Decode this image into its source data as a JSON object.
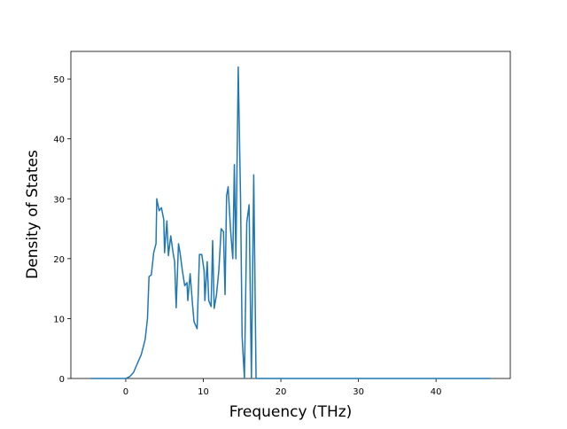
{
  "chart_data": {
    "type": "line",
    "x_label": "Frequency (THz)",
    "y_label": "Density of States",
    "x": [
      -4.5,
      0,
      0.5,
      1,
      1.5,
      2,
      2.5,
      2.8,
      3.0,
      3.3,
      3.6,
      3.9,
      4.0,
      4.3,
      4.6,
      4.9,
      5.0,
      5.3,
      5.5,
      5.8,
      6.1,
      6.3,
      6.5,
      6.8,
      7.0,
      7.3,
      7.6,
      7.9,
      8.0,
      8.3,
      8.6,
      8.8,
      9.2,
      9.5,
      9.8,
      10.1,
      10.2,
      10.5,
      10.7,
      11.0,
      11.2,
      11.4,
      11.7,
      12.0,
      12.3,
      12.6,
      12.8,
      13.0,
      13.2,
      13.5,
      13.8,
      14.0,
      14.2,
      14.5,
      14.8,
      15.0,
      15.3,
      15.6,
      15.9,
      16.2,
      16.5,
      16.8,
      47
    ],
    "series": [
      {
        "color": "#1f77b4",
        "values": [
          0,
          0,
          0.3,
          1,
          2.5,
          4,
          6.5,
          10,
          17,
          17.3,
          21,
          22.5,
          30,
          28,
          28.5,
          26.5,
          21,
          26.3,
          20.5,
          23.8,
          21,
          19.5,
          11.8,
          22.5,
          21,
          18,
          15.5,
          16,
          13,
          17.5,
          12.5,
          9.5,
          8.3,
          20.7,
          20.7,
          18,
          13,
          19.5,
          13,
          12,
          23,
          11.7,
          14,
          18,
          25,
          24.5,
          14,
          30.5,
          32,
          25,
          20,
          35.7,
          20,
          52,
          30,
          7,
          0,
          26,
          29,
          0,
          34,
          0,
          0
        ]
      }
    ],
    "xlim": [
      -7.075,
      49.575
    ],
    "ylim": [
      0,
      54.6
    ],
    "xticks": [
      0,
      10,
      20,
      30,
      40
    ],
    "yticks": [
      0,
      10,
      20,
      30,
      40,
      50
    ]
  }
}
